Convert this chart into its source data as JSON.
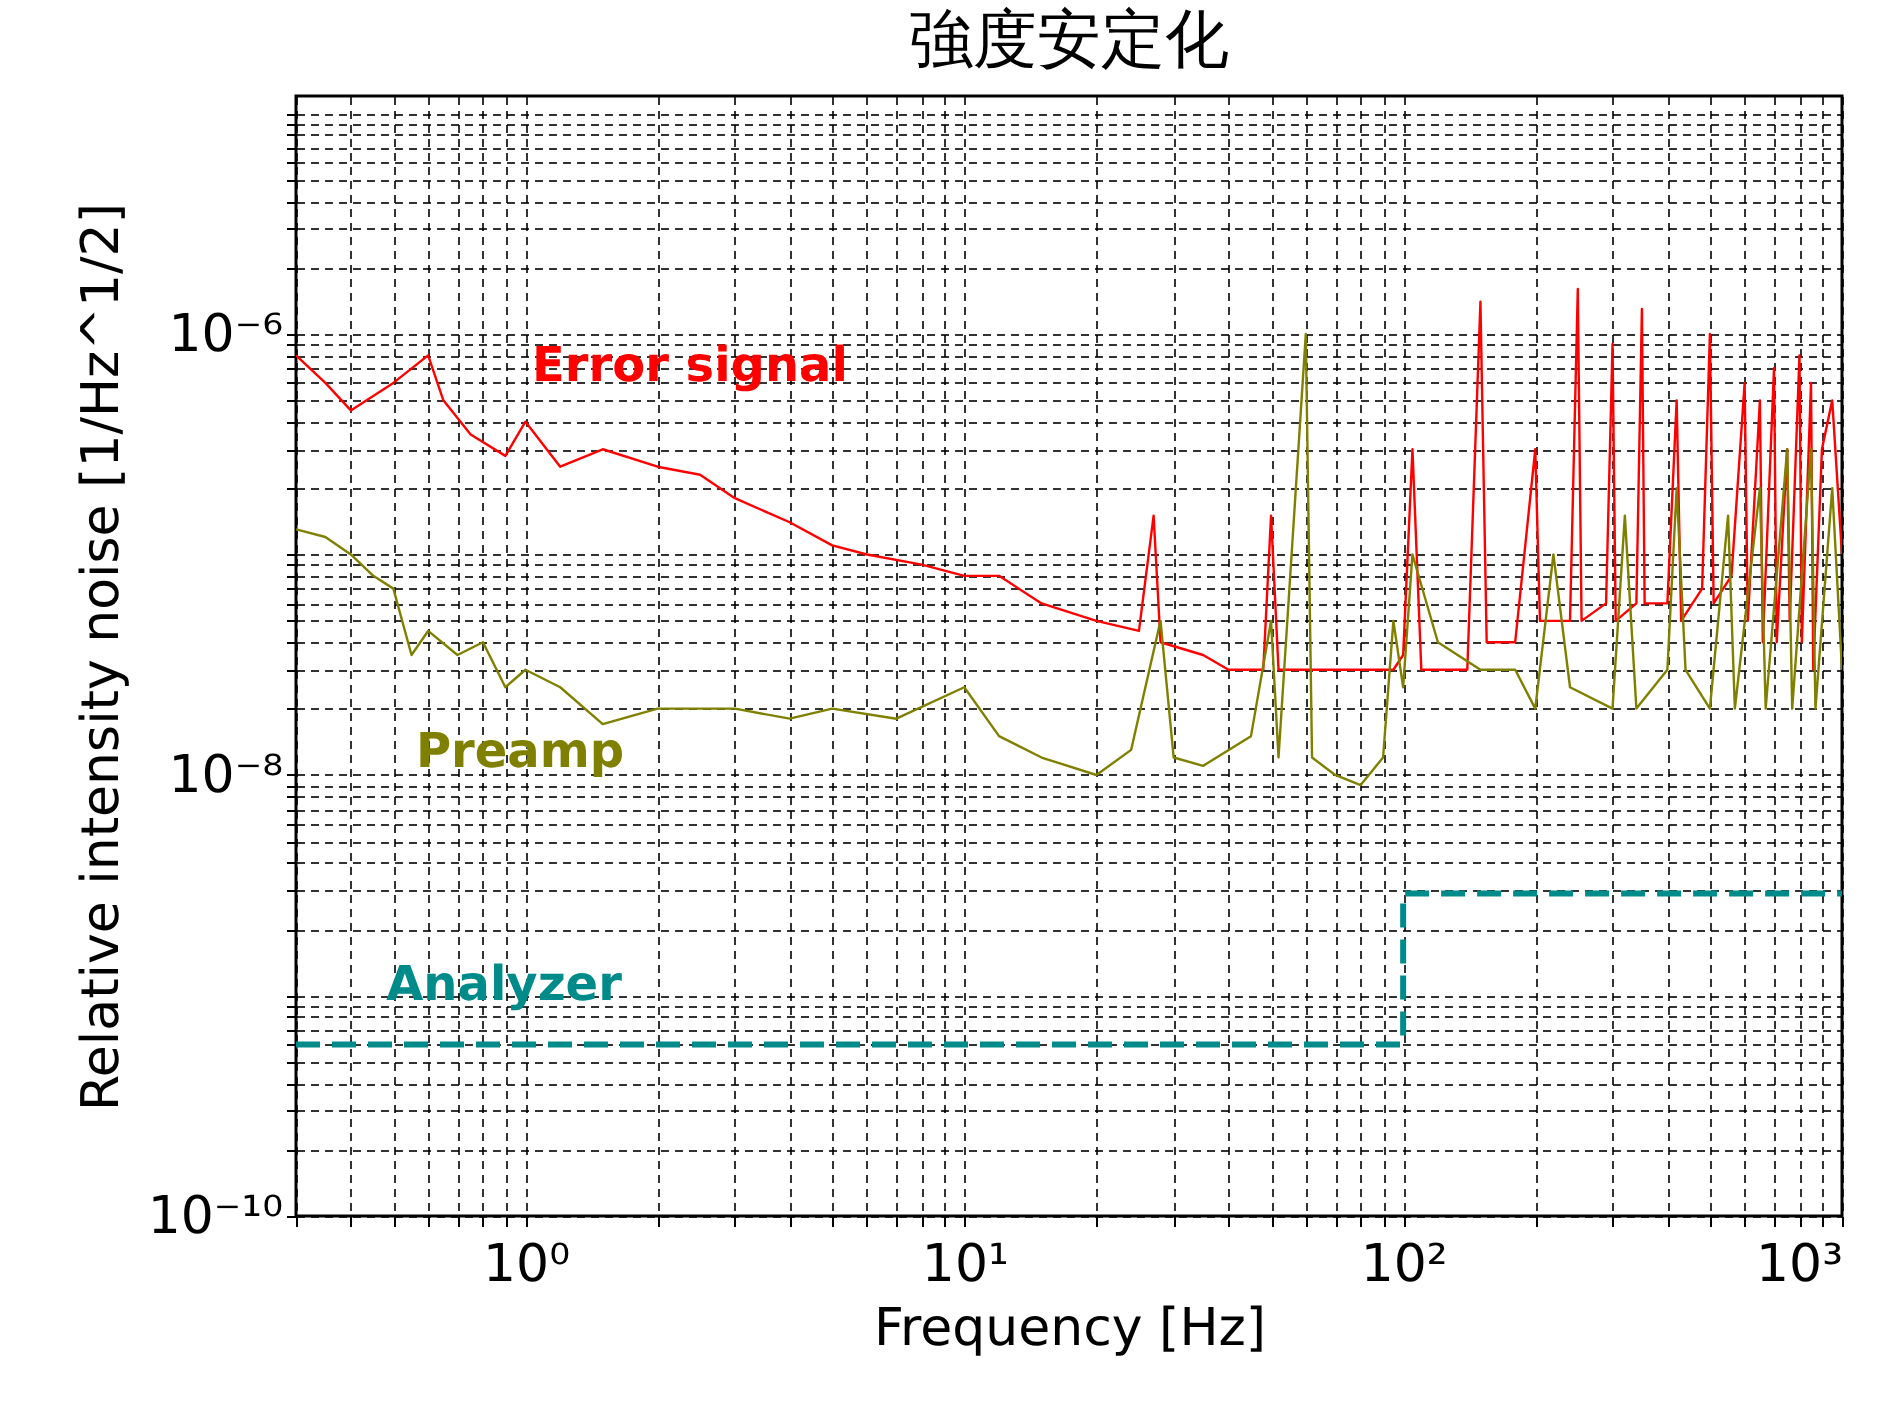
{
  "chart_data": {
    "type": "line",
    "title": "強度安定化",
    "xlabel": "Frequency [Hz]",
    "ylabel": "Relative intensity noise [1/Hz^1/2]",
    "log": "xy",
    "grid": true,
    "xlim": [
      0.3,
      1000
    ],
    "ylim": [
      1e-10,
      1.2e-05
    ],
    "xticks": [
      {
        "value": 0.3,
        "label": null
      },
      {
        "value": 0.4,
        "label": null
      },
      {
        "value": 0.5,
        "label": null
      },
      {
        "value": 0.6,
        "label": null
      },
      {
        "value": 0.7,
        "label": null
      },
      {
        "value": 0.8,
        "label": null
      },
      {
        "value": 0.9,
        "label": null
      },
      {
        "value": 1,
        "label": "10⁰"
      },
      {
        "value": 2,
        "label": null
      },
      {
        "value": 3,
        "label": null
      },
      {
        "value": 4,
        "label": null
      },
      {
        "value": 5,
        "label": null
      },
      {
        "value": 6,
        "label": null
      },
      {
        "value": 7,
        "label": null
      },
      {
        "value": 8,
        "label": null
      },
      {
        "value": 9,
        "label": null
      },
      {
        "value": 10,
        "label": "10¹"
      },
      {
        "value": 20,
        "label": null
      },
      {
        "value": 30,
        "label": null
      },
      {
        "value": 40,
        "label": null
      },
      {
        "value": 50,
        "label": null
      },
      {
        "value": 60,
        "label": null
      },
      {
        "value": 70,
        "label": null
      },
      {
        "value": 80,
        "label": null
      },
      {
        "value": 90,
        "label": null
      },
      {
        "value": 100,
        "label": "10²"
      },
      {
        "value": 200,
        "label": null
      },
      {
        "value": 300,
        "label": null
      },
      {
        "value": 400,
        "label": null
      },
      {
        "value": 500,
        "label": null
      },
      {
        "value": 600,
        "label": null
      },
      {
        "value": 700,
        "label": null
      },
      {
        "value": 800,
        "label": null
      },
      {
        "value": 900,
        "label": null
      },
      {
        "value": 1000,
        "label": "10³"
      }
    ],
    "yticks": [
      {
        "value": 1e-10,
        "label": "10⁻¹⁰"
      },
      {
        "value": 2e-10,
        "label": null
      },
      {
        "value": 3e-10,
        "label": null
      },
      {
        "value": 4e-10,
        "label": null
      },
      {
        "value": 5e-10,
        "label": null
      },
      {
        "value": 6e-10,
        "label": null
      },
      {
        "value": 7e-10,
        "label": null
      },
      {
        "value": 8e-10,
        "label": null
      },
      {
        "value": 9e-10,
        "label": null
      },
      {
        "value": 1e-09,
        "label": null
      },
      {
        "value": 2e-09,
        "label": null
      },
      {
        "value": 3e-09,
        "label": null
      },
      {
        "value": 4e-09,
        "label": null
      },
      {
        "value": 5e-09,
        "label": null
      },
      {
        "value": 6e-09,
        "label": null
      },
      {
        "value": 7e-09,
        "label": null
      },
      {
        "value": 8e-09,
        "label": null
      },
      {
        "value": 9e-09,
        "label": null
      },
      {
        "value": 1e-08,
        "label": "10⁻⁸"
      },
      {
        "value": 2e-08,
        "label": null
      },
      {
        "value": 3e-08,
        "label": null
      },
      {
        "value": 4e-08,
        "label": null
      },
      {
        "value": 5e-08,
        "label": null
      },
      {
        "value": 6e-08,
        "label": null
      },
      {
        "value": 7e-08,
        "label": null
      },
      {
        "value": 8e-08,
        "label": null
      },
      {
        "value": 9e-08,
        "label": null
      },
      {
        "value": 1e-07,
        "label": null
      },
      {
        "value": 2e-07,
        "label": null
      },
      {
        "value": 3e-07,
        "label": null
      },
      {
        "value": 4e-07,
        "label": null
      },
      {
        "value": 5e-07,
        "label": null
      },
      {
        "value": 6e-07,
        "label": null
      },
      {
        "value": 7e-07,
        "label": null
      },
      {
        "value": 8e-07,
        "label": null
      },
      {
        "value": 9e-07,
        "label": null
      },
      {
        "value": 1e-06,
        "label": "10⁻⁶"
      },
      {
        "value": 2e-06,
        "label": null
      },
      {
        "value": 3e-06,
        "label": null
      },
      {
        "value": 4e-06,
        "label": null
      },
      {
        "value": 5e-06,
        "label": null
      },
      {
        "value": 6e-06,
        "label": null
      },
      {
        "value": 7e-06,
        "label": null
      },
      {
        "value": 8e-06,
        "label": null
      },
      {
        "value": 9e-06,
        "label": null
      },
      {
        "value": 1e-05,
        "label": null
      }
    ],
    "series": [
      {
        "name": "Error signal",
        "color": "#ff0000",
        "line_style": "solid",
        "x": [
          0.3,
          0.35,
          0.4,
          0.5,
          0.6,
          0.65,
          0.75,
          0.9,
          1.0,
          1.2,
          1.5,
          2,
          2.5,
          3,
          4,
          5,
          6,
          8,
          10,
          12,
          15,
          20,
          25,
          27,
          28,
          35,
          40,
          48,
          50,
          52,
          60,
          70,
          85,
          95,
          100,
          105,
          110,
          140,
          150,
          155,
          180,
          200,
          205,
          240,
          250,
          255,
          290,
          300,
          305,
          340,
          350,
          355,
          400,
          420,
          430,
          480,
          500,
          510,
          560,
          600,
          610,
          650,
          660,
          700,
          710,
          750,
          760,
          800,
          810,
          850,
          860,
          900,
          950,
          1000
        ],
        "values": [
          8e-07,
          6e-07,
          4.5e-07,
          6e-07,
          8e-07,
          5e-07,
          3.5e-07,
          2.8e-07,
          4e-07,
          2.5e-07,
          3e-07,
          2.5e-07,
          2.3e-07,
          1.8e-07,
          1.4e-07,
          1.1e-07,
          1e-07,
          9e-08,
          8e-08,
          8e-08,
          6e-08,
          5e-08,
          4.5e-08,
          1.5e-07,
          4e-08,
          3.5e-08,
          3e-08,
          3e-08,
          1.5e-07,
          3e-08,
          3e-08,
          3e-08,
          3e-08,
          3e-08,
          3.5e-08,
          3e-07,
          3e-08,
          3e-08,
          1.4e-06,
          4e-08,
          4e-08,
          3e-07,
          5e-08,
          5e-08,
          1.6e-06,
          5e-08,
          6e-08,
          9e-07,
          5e-08,
          6e-08,
          1.3e-06,
          6e-08,
          6e-08,
          5e-07,
          5e-08,
          7e-08,
          1e-06,
          6e-08,
          8e-08,
          6e-07,
          5e-08,
          5e-07,
          4e-08,
          7e-07,
          4e-08,
          3e-07,
          5e-08,
          8e-07,
          4e-08,
          6e-07,
          3e-08,
          3e-07,
          5e-07,
          1e-07
        ]
      },
      {
        "name": "Preamp",
        "color": "#808000",
        "line_style": "solid",
        "x": [
          0.3,
          0.35,
          0.4,
          0.45,
          0.5,
          0.55,
          0.6,
          0.7,
          0.8,
          0.9,
          1.0,
          1.2,
          1.5,
          2,
          3,
          4,
          5,
          7,
          10,
          12,
          15,
          20,
          24,
          28,
          30,
          35,
          45,
          50,
          52,
          60,
          62,
          70,
          80,
          90,
          95,
          100,
          105,
          120,
          150,
          180,
          200,
          220,
          240,
          300,
          320,
          340,
          400,
          420,
          440,
          500,
          550,
          570,
          650,
          670,
          750,
          770,
          850,
          870,
          950,
          1000
        ],
        "values": [
          1.3e-07,
          1.2e-07,
          1e-07,
          8e-08,
          7e-08,
          3.5e-08,
          4.5e-08,
          3.5e-08,
          4e-08,
          2.5e-08,
          3e-08,
          2.5e-08,
          1.7e-08,
          2e-08,
          2e-08,
          1.8e-08,
          2e-08,
          1.8e-08,
          2.5e-08,
          1.5e-08,
          1.2e-08,
          1e-08,
          1.3e-08,
          5e-08,
          1.2e-08,
          1.1e-08,
          1.5e-08,
          5e-08,
          1.2e-08,
          1e-06,
          1.2e-08,
          1e-08,
          9e-09,
          1.2e-08,
          5e-08,
          2.5e-08,
          1e-07,
          4e-08,
          3e-08,
          3e-08,
          2e-08,
          1e-07,
          2.5e-08,
          2e-08,
          1.5e-07,
          2e-08,
          3e-08,
          2e-07,
          3e-08,
          2e-08,
          1.5e-07,
          2e-08,
          2e-07,
          2e-08,
          3e-07,
          2e-08,
          3e-07,
          2e-08,
          2e-07,
          3e-08
        ]
      },
      {
        "name": "Analyzer",
        "type": "step",
        "color": "#008b8b",
        "line_style": "dashed",
        "x": [
          0.3,
          100,
          1000
        ],
        "values": [
          6e-10,
          2.9e-09,
          2.9e-09
        ]
      }
    ]
  }
}
